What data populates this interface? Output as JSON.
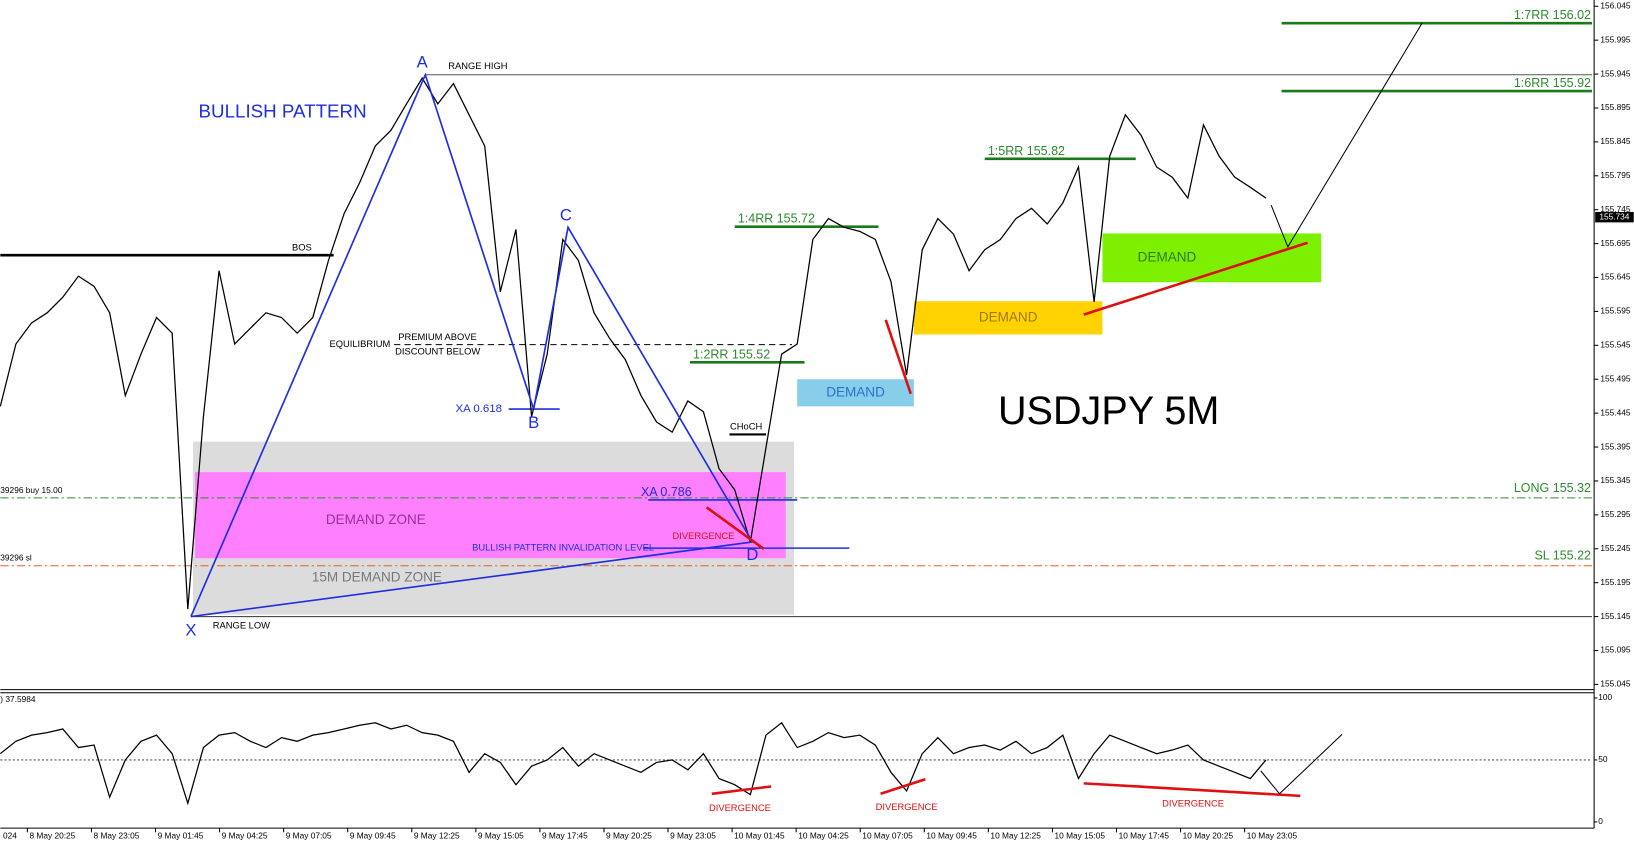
{
  "chart_data": {
    "type": "line",
    "title": "USDJPY 5M",
    "pattern_label": "BULLISH PATTERN",
    "color": "#000000",
    "values": [
      155.455,
      155.547,
      155.578,
      155.593,
      155.616,
      155.647,
      155.632,
      155.593,
      155.471,
      155.532,
      155.586,
      155.563,
      155.156,
      155.44,
      155.655,
      155.547,
      155.57,
      155.593,
      155.586,
      155.563,
      155.586,
      155.67,
      155.739,
      155.785,
      155.839,
      155.862,
      155.901,
      155.939,
      155.901,
      155.931,
      155.885,
      155.839,
      155.624,
      155.716,
      155.44,
      155.532,
      155.701,
      155.67,
      155.593,
      155.555,
      155.524,
      155.471,
      155.432,
      155.417,
      155.463,
      155.447,
      155.363,
      155.332,
      155.255,
      155.394,
      155.532,
      155.547,
      155.701,
      155.732,
      155.719,
      155.713,
      155.701,
      155.639,
      155.501,
      155.686,
      155.732,
      155.709,
      155.655,
      155.686,
      155.701,
      155.732,
      155.747,
      155.724,
      155.755,
      155.808,
      155.609,
      155.824,
      155.885,
      155.855,
      155.808,
      155.793,
      155.762,
      155.87,
      155.824,
      155.793,
      155.778,
      155.762
    ],
    "ylim": [
      155.04,
      156.05
    ],
    "yticks": [
      156.045,
      155.995,
      155.945,
      155.895,
      155.845,
      155.795,
      155.745,
      155.695,
      155.645,
      155.595,
      155.545,
      155.495,
      155.445,
      155.395,
      155.345,
      155.295,
      155.245,
      155.195,
      155.145,
      155.095,
      155.045
    ],
    "current_price": 155.734,
    "time_labels": [
      "024",
      "8 May 20:25",
      "8 May 23:05",
      "9 May 01:45",
      "9 May 04:25",
      "9 May 07:05",
      "9 May 09:45",
      "9 May 12:25",
      "9 May 15:05",
      "9 May 17:45",
      "9 May 20:25",
      "9 May 23:05",
      "10 May 01:45",
      "10 May 04:25",
      "10 May 07:05",
      "10 May 09:45",
      "10 May 12:25",
      "10 May 15:05",
      "10 May 17:45",
      "10 May 20:25",
      "10 May 23:05"
    ],
    "levels": [
      {
        "label": "RANGE HIGH",
        "price": 155.944
      },
      {
        "label": "RANGE LOW",
        "price": 155.145
      },
      {
        "label": "BOS",
        "price": 155.678
      },
      {
        "label": "EQUILIBRIUM",
        "price": 155.546
      }
    ],
    "premium_label": "PREMIUM ABOVE",
    "discount_label": "DISCOUNT BELOW",
    "targets": [
      {
        "label": "1:7RR 156.02",
        "price": 156.02
      },
      {
        "label": "1:6RR 155.92",
        "price": 155.92
      },
      {
        "label": "1:5RR 155.82",
        "price": 155.82
      },
      {
        "label": "1:4RR 155.72",
        "price": 155.72
      },
      {
        "label": "1:2RR 155.52",
        "price": 155.52
      }
    ],
    "trade_lines": [
      {
        "label": "LONG 155.32",
        "order": "39296 buy 15.00",
        "price": 155.32,
        "color": "#2e8b2e"
      },
      {
        "label": "SL 155.22",
        "order": "39296 sl",
        "price": 155.22,
        "color": "#e0602a"
      }
    ],
    "pattern_points": [
      {
        "label": "X",
        "price": 155.145
      },
      {
        "label": "A",
        "price": 155.944
      },
      {
        "label": "B",
        "price": 155.451
      },
      {
        "label": "C",
        "price": 155.719
      },
      {
        "label": "D",
        "price": 155.255
      }
    ],
    "fibs": [
      {
        "label": "XA 0.618",
        "price": 155.451
      },
      {
        "label": "XA 0.786",
        "price": 155.317
      }
    ],
    "invalidation": {
      "label": "BULLISH PATTERN INVALIDATION LEVEL",
      "price": 155.246
    },
    "zones": [
      {
        "label": "15M DEMAND ZONE",
        "top": 155.403,
        "bottom": 155.148,
        "color": "#dcdcdc",
        "text_color": "#777777"
      },
      {
        "label": "DEMAND ZONE",
        "top": 155.358,
        "bottom": 155.231,
        "color": "#ff80ff",
        "text_color": "#9b2fa0"
      },
      {
        "label": "DEMAND",
        "top": 155.495,
        "bottom": 155.455,
        "color": "#87ceeb",
        "text_color": "#2a6fd0"
      },
      {
        "label": "DEMAND",
        "top": 155.61,
        "bottom": 155.561,
        "color": "#ffd200",
        "text_color": "#a07820"
      },
      {
        "label": "DEMAND",
        "top": 155.71,
        "bottom": 155.638,
        "color": "#7cf000",
        "text_color": "#2e7d1e"
      }
    ],
    "choch_label": "CHoCH",
    "divergence_label": "DIVERGENCE",
    "oscillator": {
      "label": ") 37.5984",
      "values": [
        55,
        65,
        70,
        72,
        75,
        60,
        62,
        20,
        50,
        65,
        70,
        55,
        15,
        60,
        70,
        72,
        65,
        60,
        68,
        65,
        70,
        72,
        75,
        78,
        80,
        75,
        78,
        72,
        70,
        65,
        40,
        55,
        48,
        30,
        45,
        50,
        60,
        45,
        55,
        50,
        45,
        40,
        48,
        50,
        42,
        55,
        35,
        30,
        22,
        70,
        80,
        60,
        65,
        72,
        68,
        70,
        62,
        40,
        25,
        55,
        68,
        55,
        60,
        62,
        58,
        65,
        55,
        60,
        70,
        35,
        55,
        70,
        65,
        60,
        55,
        58,
        62,
        50,
        45,
        40,
        35,
        50
      ],
      "ylim": [
        0,
        100
      ],
      "yticks": [
        0,
        50,
        100
      ],
      "divergences": [
        "DIVERGENCE",
        "DIVERGENCE",
        "DIVERGENCE"
      ]
    }
  }
}
